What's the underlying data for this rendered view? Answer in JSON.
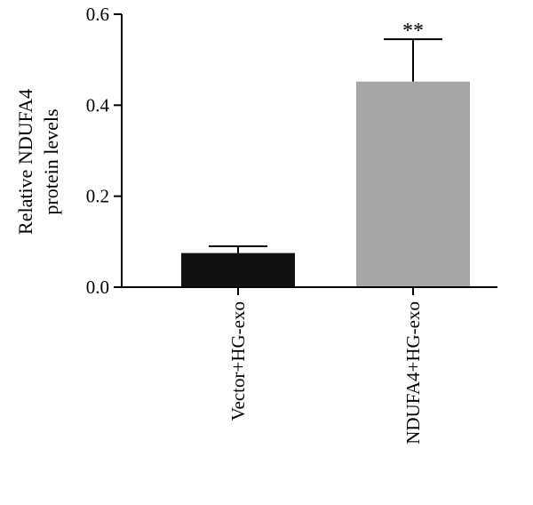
{
  "chart_data": {
    "type": "bar",
    "title": "",
    "xlabel": "",
    "ylabel_lines": [
      "Relative NDUFA4",
      "protein levels"
    ],
    "categories": [
      "Vector+HG-exo",
      "NDUFA4+HG-exo"
    ],
    "values": [
      0.075,
      0.452
    ],
    "errors": [
      0.015,
      0.093
    ],
    "bar_colors": [
      "#111111",
      "#a6a6a6"
    ],
    "annotations": [
      "",
      "**"
    ],
    "ylim": [
      0,
      0.6
    ],
    "yticks": [
      0.0,
      0.2,
      0.4,
      0.6
    ],
    "ytick_labels": [
      "0.0",
      "0.2",
      "0.4",
      "0.6"
    ],
    "grid": false,
    "legend": "none"
  }
}
